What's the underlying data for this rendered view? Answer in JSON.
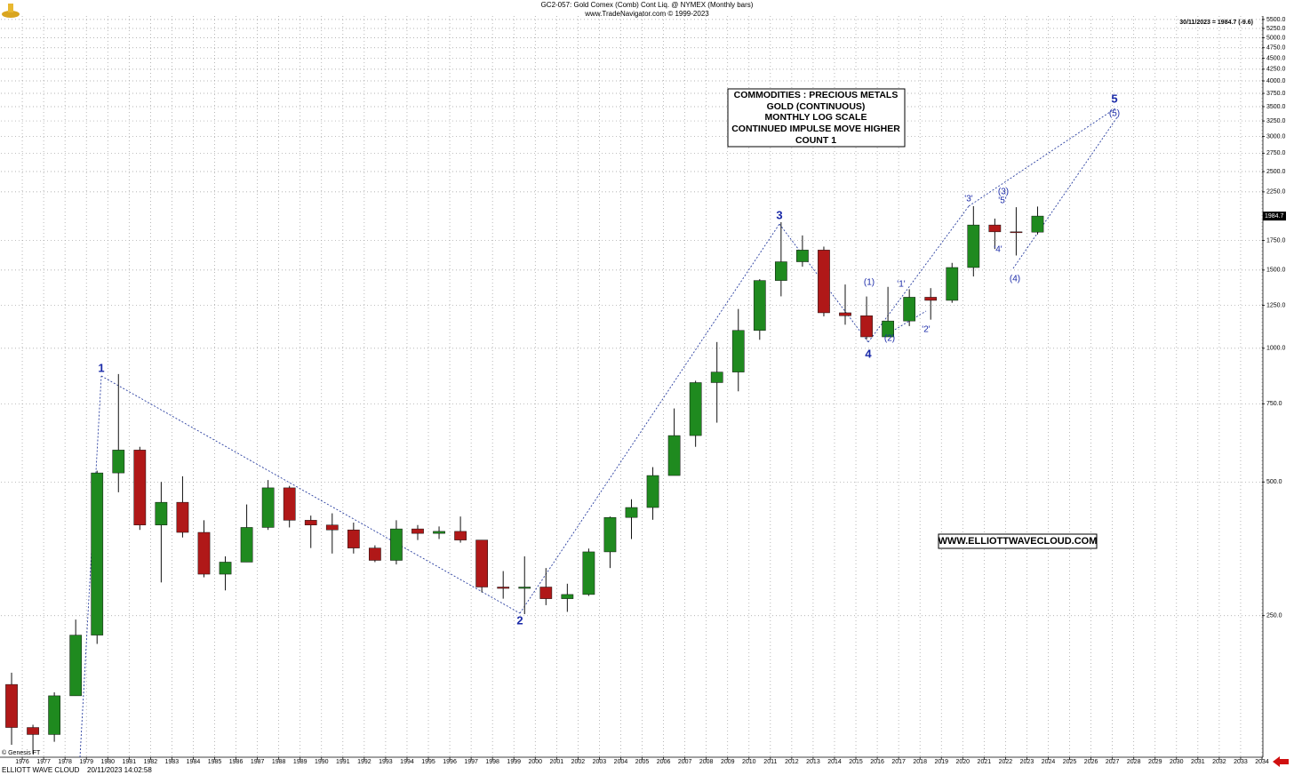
{
  "chart_data": {
    "type": "candlestick",
    "title": "GC2-057:  Gold Comex (Comb) Cont Liq. @ NYMEX  (Monthly bars)",
    "subtitle": "www.TradeNavigator.com © 1999-2023",
    "last_info": "30/11/2023 = 1984.7 (-9.6)",
    "last_price": 1984.7,
    "info_box": [
      "COMMODITIES : PRECIOUS METALS",
      "GOLD (CONTINUOUS)",
      "MONTHLY LOG SCALE",
      "CONTINUED IMPULSE MOVE HIGHER",
      "COUNT 1"
    ],
    "website": "WWW.ELLIOTTWAVECLOUD.COM",
    "copyright": "© Genesis FT",
    "footer_name": "ELLIOTT WAVE CLOUD",
    "footer_time": "20/11/2023 14:02:58",
    "wave_labels": [
      "1",
      "2",
      "3",
      "4",
      "5",
      "(1)",
      "(2)",
      "(3)",
      "(4)",
      "(5)",
      "'1'",
      "'2'",
      "'3'",
      "'4'",
      "'5'"
    ],
    "log_scale": true,
    "grid": true,
    "up_color": "#1f8a1f",
    "down_color": "#b01818",
    "wick_color": "#111111",
    "x": [
      1975,
      1976,
      1977,
      1978,
      1979,
      1980,
      1981,
      1982,
      1983,
      1984,
      1985,
      1986,
      1987,
      1988,
      1989,
      1990,
      1991,
      1992,
      1993,
      1994,
      1995,
      1996,
      1997,
      1998,
      1999,
      2000,
      2001,
      2002,
      2003,
      2004,
      2005,
      2006,
      2007,
      2008,
      2009,
      2010,
      2011,
      2012,
      2013,
      2014,
      2015,
      2016,
      2017,
      2018,
      2019,
      2020,
      2021,
      2022,
      2023
    ],
    "open": [
      175,
      140,
      135,
      165,
      226,
      524,
      590,
      400,
      450,
      385,
      310,
      330,
      395,
      485,
      410,
      400,
      390,
      355,
      333,
      392,
      383,
      387,
      370,
      290,
      288,
      290,
      273,
      279,
      348,
      416,
      438,
      517,
      636,
      837,
      884,
      1097,
      1421,
      1566,
      1664,
      1202,
      1184,
      1061,
      1152,
      1303,
      1282,
      1520,
      1895,
      1829,
      1826
    ],
    "high": [
      186,
      142,
      168,
      245,
      530,
      875,
      600,
      500,
      515,
      410,
      340,
      445,
      505,
      490,
      420,
      425,
      405,
      360,
      410,
      400,
      397,
      418,
      370,
      315,
      340,
      320,
      295,
      354,
      418,
      457,
      540,
      732,
      845,
      1033,
      1226,
      1431,
      1923,
      1795,
      1694,
      1392,
      1308,
      1375,
      1358,
      1366,
      1557,
      2089,
      1959,
      2078,
      2085
    ],
    "low": [
      128,
      122,
      130,
      165,
      216,
      474,
      390,
      297,
      375,
      305,
      285,
      330,
      390,
      395,
      355,
      345,
      345,
      330,
      326,
      370,
      372,
      365,
      282,
      273,
      252,
      264,
      255,
      277,
      320,
      372,
      411,
      520,
      600,
      680,
      800,
      1045,
      1309,
      1527,
      1180,
      1130,
      1046,
      1061,
      1122,
      1160,
      1266,
      1451,
      1673,
      1618,
      1804
    ],
    "close": [
      140,
      135,
      165,
      226,
      524,
      590,
      400,
      450,
      385,
      310,
      330,
      395,
      485,
      410,
      400,
      390,
      355,
      333,
      392,
      383,
      387,
      370,
      290,
      288,
      290,
      273,
      279,
      348,
      416,
      438,
      517,
      636,
      837,
      884,
      1097,
      1421,
      1566,
      1664,
      1202,
      1184,
      1061,
      1152,
      1303,
      1282,
      1520,
      1895,
      1829,
      1826,
      1984.7
    ],
    "xlim": [
      1975,
      2034
    ],
    "xticks": [
      1976,
      1977,
      1978,
      1979,
      1980,
      1981,
      1982,
      1983,
      1984,
      1985,
      1986,
      1987,
      1988,
      1989,
      1990,
      1991,
      1992,
      1993,
      1994,
      1995,
      1996,
      1997,
      1998,
      1999,
      2000,
      2001,
      2002,
      2003,
      2004,
      2005,
      2006,
      2007,
      2008,
      2009,
      2010,
      2011,
      2012,
      2013,
      2014,
      2015,
      2016,
      2017,
      2018,
      2019,
      2020,
      2021,
      2022,
      2023,
      2024,
      2025,
      2026,
      2027,
      2028,
      2029,
      2030,
      2031,
      2032,
      2033,
      2034
    ],
    "ylim": [
      120,
      5600
    ],
    "yticks": [
      {
        "value": 250,
        "label": "250.0"
      },
      {
        "value": 500,
        "label": "500.0"
      },
      {
        "value": 750,
        "label": "750.0"
      },
      {
        "value": 1000,
        "label": "1000.0"
      },
      {
        "value": 1250,
        "label": "1250.0"
      },
      {
        "value": 1500,
        "label": "1500.0"
      },
      {
        "value": 1750,
        "label": "1750.0"
      },
      {
        "value": 2250,
        "label": "2250.0"
      },
      {
        "value": 2500,
        "label": "2500.0"
      },
      {
        "value": 2750,
        "label": "2750.0"
      },
      {
        "value": 3000,
        "label": "3000.0"
      },
      {
        "value": 3250,
        "label": "3250.0"
      },
      {
        "value": 3500,
        "label": "3500.0"
      },
      {
        "value": 3750,
        "label": "3750.0"
      },
      {
        "value": 4000,
        "label": "4000.0"
      },
      {
        "value": 4250,
        "label": "4250.0"
      },
      {
        "value": 4500,
        "label": "4500.0"
      },
      {
        "value": 4750,
        "label": "4750.0"
      },
      {
        "value": 5000,
        "label": "5000.0"
      },
      {
        "value": 5250,
        "label": "5250.0"
      },
      {
        "value": 5500,
        "label": "5500.0"
      }
    ]
  }
}
